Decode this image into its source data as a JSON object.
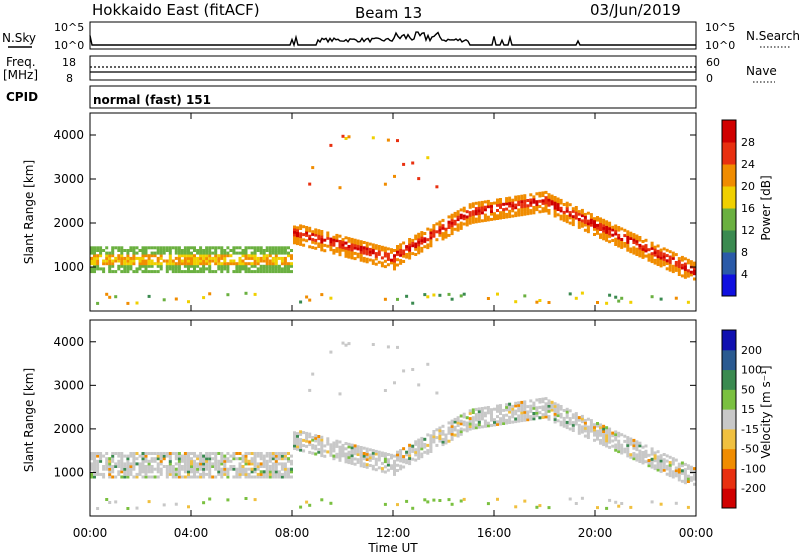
{
  "header": {
    "site": "Hokkaido East (fitACF)",
    "beam": "Beam 13",
    "date": "03/Jun/2019"
  },
  "strips": {
    "nsky_label": "N.Sky",
    "nsky_ticks": [
      "10^5",
      "10^0"
    ],
    "freq_label_1": "Freq.",
    "freq_label_2": "[MHz]",
    "freq_ticks": [
      "18",
      "8"
    ],
    "cpid_label": "CPID",
    "cpid_value": "normal (fast) 151",
    "right_top_ticks": [
      "10^5",
      "10^0"
    ],
    "right_mid_ticks": [
      "60",
      "0"
    ],
    "nsearch_label": "N.Search",
    "nave_label": "Nave"
  },
  "chart_data": [
    {
      "type": "heatmap",
      "title": "",
      "xlabel": "Time UT",
      "ylabel": "Slant Range [km]",
      "x_ticks": [
        "00:00",
        "04:00",
        "08:00",
        "12:00",
        "16:00",
        "20:00",
        "00:00"
      ],
      "y_ticks": [
        "1000",
        "2000",
        "3000",
        "4000"
      ],
      "colorbar_label": "Power [dB]",
      "colorbar_ticks": [
        "4",
        "8",
        "12",
        "16",
        "20",
        "24",
        "28"
      ],
      "colors": [
        "#1010e0",
        "#2a5aa8",
        "#3a8a50",
        "#6ab040",
        "#f0d000",
        "#f08c00",
        "#e83010",
        "#d00000"
      ],
      "echo_bands_hours_km": [
        {
          "t": [
            0,
            7.9
          ],
          "range": [
            750,
            1450
          ],
          "level": "mid"
        },
        {
          "t": [
            8.2,
            11.8
          ],
          "range": [
            900,
            1800
          ],
          "level": "high"
        },
        {
          "t": [
            12,
            17.8
          ],
          "range": [
            1300,
            2700
          ],
          "level": "high"
        },
        {
          "t": [
            18,
            24
          ],
          "range": [
            700,
            2500
          ],
          "level": "high"
        }
      ]
    },
    {
      "type": "heatmap",
      "title": "",
      "xlabel": "Time UT",
      "ylabel": "Slant Range [km]",
      "x_ticks": [
        "00:00",
        "04:00",
        "08:00",
        "12:00",
        "16:00",
        "20:00",
        "00:00"
      ],
      "y_ticks": [
        "1000",
        "2000",
        "3000",
        "4000"
      ],
      "colorbar_label": "Velocity [m s⁻¹]",
      "colorbar_ticks": [
        "200",
        "100",
        "50",
        "15",
        "-15",
        "-50",
        "-100",
        "-200"
      ],
      "colors": [
        "#1010b0",
        "#2a5a90",
        "#3a8a50",
        "#7ac040",
        "#c8c8c8",
        "#f0c040",
        "#f08c00",
        "#e83010",
        "#d00000"
      ]
    }
  ]
}
